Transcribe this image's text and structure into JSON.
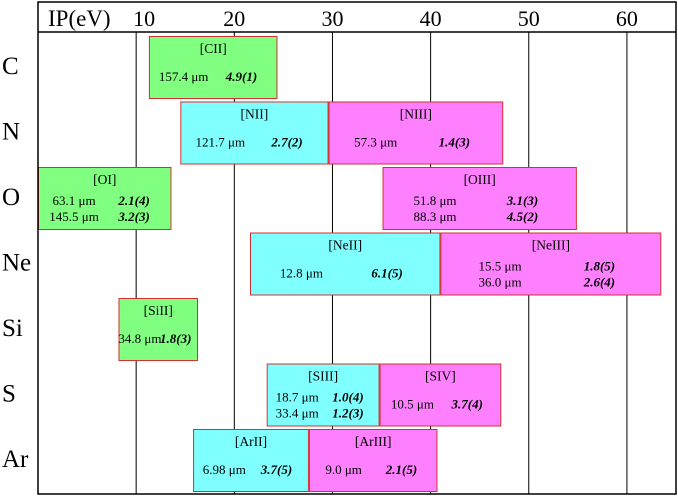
{
  "axis": {
    "label": "IP(eV)",
    "min": 0,
    "max": 65,
    "ticks": [
      10,
      20,
      30,
      40,
      50,
      60
    ],
    "tick_labels": [
      "10",
      "20",
      "30",
      "40",
      "50",
      "60"
    ]
  },
  "colors": {
    "neutral_ionizing": "#80ff80",
    "singly_ionized": "#80ffff",
    "doubly_ionized": "#ff80ff",
    "border": "#d33030"
  },
  "chart_data": {
    "type": "diagram",
    "rows": [
      {
        "element": "C",
        "bars": [
          {
            "ion": "[CII]",
            "ip_range": [
              11.3,
              24.4
            ],
            "color": "#80ff80",
            "lines": [
              {
                "wavelength": "157.4 μm",
                "value": "4.9(1)"
              }
            ]
          }
        ]
      },
      {
        "element": "N",
        "bars": [
          {
            "ion": "[NII]",
            "ip_range": [
              14.5,
              29.6
            ],
            "color": "#80ffff",
            "lines": [
              {
                "wavelength": "121.7 μm",
                "value": "2.7(2)"
              }
            ]
          },
          {
            "ion": "[NIII]",
            "ip_range": [
              29.6,
              47.4
            ],
            "color": "#ff80ff",
            "lines": [
              {
                "wavelength": "57.3 μm",
                "value": "1.4(3)"
              }
            ]
          }
        ]
      },
      {
        "element": "O",
        "bars": [
          {
            "ion": "[OI]",
            "ip_range": [
              0,
              13.6
            ],
            "color": "#80ff80",
            "lines": [
              {
                "wavelength": "63.1 μm",
                "value": "2.1(4)"
              },
              {
                "wavelength": "145.5 μm",
                "value": "3.2(3)"
              }
            ]
          },
          {
            "ion": "[OIII]",
            "ip_range": [
              35.1,
              54.9
            ],
            "color": "#ff80ff",
            "lines": [
              {
                "wavelength": "51.8 μm",
                "value": "3.1(3)"
              },
              {
                "wavelength": "88.3 μm",
                "value": "4.5(2)"
              }
            ]
          }
        ]
      },
      {
        "element": "Ne",
        "bars": [
          {
            "ion": "[NeII]",
            "ip_range": [
              21.6,
              41.0
            ],
            "color": "#80ffff",
            "lines": [
              {
                "wavelength": "12.8 μm",
                "value": "6.1(5)"
              }
            ]
          },
          {
            "ion": "[NeIII]",
            "ip_range": [
              41.0,
              63.5
            ],
            "color": "#ff80ff",
            "lines": [
              {
                "wavelength": "15.5 μm",
                "value": "1.8(5)"
              },
              {
                "wavelength": "36.0 μm",
                "value": "2.6(4)"
              }
            ]
          }
        ]
      },
      {
        "element": "Si",
        "bars": [
          {
            "ion": "[SiII]",
            "ip_range": [
              8.2,
              16.3
            ],
            "color": "#80ff80",
            "lines": [
              {
                "wavelength": "34.8 μm",
                "value": "1.8(3)"
              }
            ]
          }
        ]
      },
      {
        "element": "S",
        "bars": [
          {
            "ion": "[SIII]",
            "ip_range": [
              23.3,
              34.8
            ],
            "color": "#80ffff",
            "lines": [
              {
                "wavelength": "18.7 μm",
                "value": "1.0(4)"
              },
              {
                "wavelength": "33.4 μm",
                "value": "1.2(3)"
              }
            ]
          },
          {
            "ion": "[SIV]",
            "ip_range": [
              34.8,
              47.2
            ],
            "color": "#ff80ff",
            "lines": [
              {
                "wavelength": "10.5 μm",
                "value": "3.7(4)"
              }
            ]
          }
        ]
      },
      {
        "element": "Ar",
        "bars": [
          {
            "ion": "[ArII]",
            "ip_range": [
              15.8,
              27.6
            ],
            "color": "#80ffff",
            "lines": [
              {
                "wavelength": "6.98 μm",
                "value": "3.7(5)"
              }
            ]
          },
          {
            "ion": "[ArIII]",
            "ip_range": [
              27.6,
              40.7
            ],
            "color": "#ff80ff",
            "lines": [
              {
                "wavelength": "9.0 μm",
                "value": "2.1(5)"
              }
            ]
          }
        ]
      }
    ]
  }
}
